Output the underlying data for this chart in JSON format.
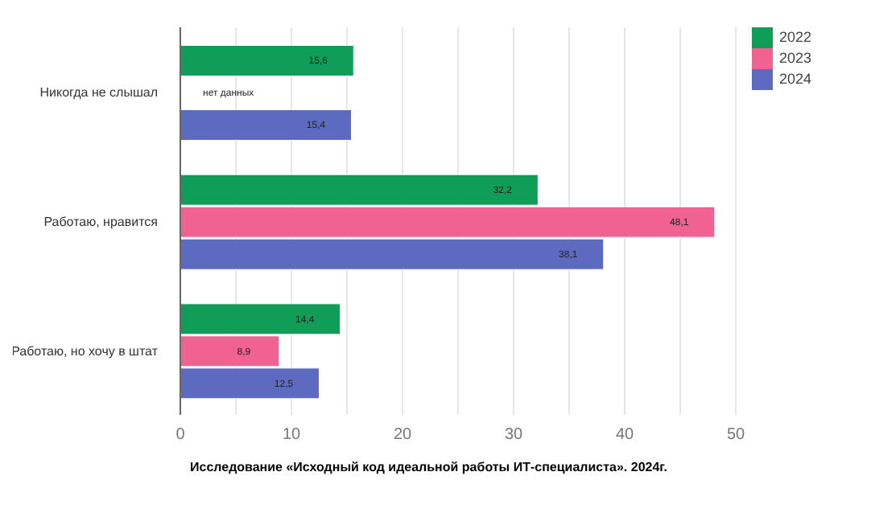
{
  "chart_data": {
    "type": "bar",
    "orientation": "horizontal",
    "categories": [
      "Никогда не слышал",
      "Работаю, нравится",
      "Работаю, но хочу в штат"
    ],
    "series": [
      {
        "name": "2022",
        "color": "#0f9d58",
        "values": [
          15.6,
          32.2,
          14.4
        ],
        "value_labels": [
          "15,6",
          "32,2",
          "14,4"
        ]
      },
      {
        "name": "2023",
        "color": "#f06292",
        "values": [
          null,
          48.1,
          8.9
        ],
        "value_labels": [
          "нет данных",
          "48,1",
          "8,9"
        ]
      },
      {
        "name": "2024",
        "color": "#5c6bc0",
        "values": [
          15.4,
          38.1,
          12.5
        ],
        "value_labels": [
          "15,4",
          "38,1",
          "12,5"
        ]
      }
    ],
    "xlim": [
      0,
      50
    ],
    "xticks": [
      0,
      {
        "value": 5,
        "label": null
      },
      10,
      {
        "value": 15,
        "label": null
      },
      20,
      {
        "value": 25,
        "label": null
      },
      30,
      {
        "value": 35,
        "label": null
      },
      40,
      {
        "value": 45,
        "label": null
      },
      50
    ],
    "grid": "x",
    "legend": "top right",
    "annotations": [
      "Исследование «Исходный код идеальной работы ИТ-специалиста». 2024г."
    ]
  }
}
